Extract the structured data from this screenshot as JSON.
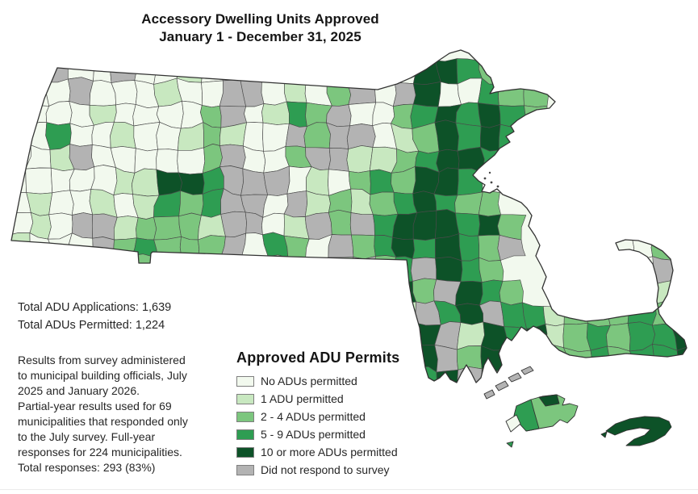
{
  "title": {
    "line1": "Accessory Dwelling Units Approved",
    "line2": "January 1 - December 31, 2025"
  },
  "stats": {
    "text": "Total ADU Applications: 1,639\nTotal ADUs Permitted: 1,224"
  },
  "note": {
    "text": "Results from survey administered\nto municipal building officials, July\n2025 and January 2026.\nPartial-year results used for 69\nmunicipalities that responded only\nto the July survey. Full-year\nresponses for 224 municipalities.\nTotal responses: 293 (83%)"
  },
  "legend": {
    "title": "Approved ADU Permits",
    "items": [
      {
        "key": "0",
        "label": "No ADUs permitted"
      },
      {
        "key": "1",
        "label": "1 ADU permitted"
      },
      {
        "key": "2",
        "label": "2 - 4 ADUs permitted"
      },
      {
        "key": "3",
        "label": "5 - 9 ADUs permitted"
      },
      {
        "key": "4",
        "label": "10 or more ADUs permitted"
      },
      {
        "key": "G",
        "label": "Did not respond to survey"
      }
    ]
  },
  "map": {
    "palette": {
      "0": "#f2f9ee",
      "1": "#c8e8c0",
      "2": "#7cc67e",
      "3": "#2e9d52",
      "4": "#0d5228",
      "G": "#b3b3b3"
    },
    "line_color": "#4a4a4a",
    "outline_color": "#333333",
    "grid": [
      "..G00G0010GG010G00044321........",
      ".00G000100GG0102G0G400322.......",
      ".000100002G0132G002343432.......",
      ".030010012100G2GG0124343........",
      ".01G000002G002GG1123443.........",
      "0000011443GGG010232443..........",
      "0100101323GG0G121234322.........",
      "010GG12221GG01G2G3444342........",
      "1000G23222G0320G2343432G....002.",
      ".1101222120G1G21G23G432.......GG",
      "................1342G432......12",
      "................0G1G34G331222323",
      "...................4G14341232334",
      "...................4G24.42232334",
      "...................34G2........."
    ],
    "islands": {
      "elizabeth-1": "G",
      "elizabeth-2": "G",
      "elizabeth-3": "G",
      "elizabeth-4": "G",
      "marthas-vineyard-body": "2",
      "marthas-vineyard-west": "3",
      "marthas-vineyard-north": "4",
      "marthas-vineyard-tip": "0",
      "marthas-vineyard-islet": "3",
      "nantucket": "4",
      "nantucket-islet": "4"
    }
  }
}
